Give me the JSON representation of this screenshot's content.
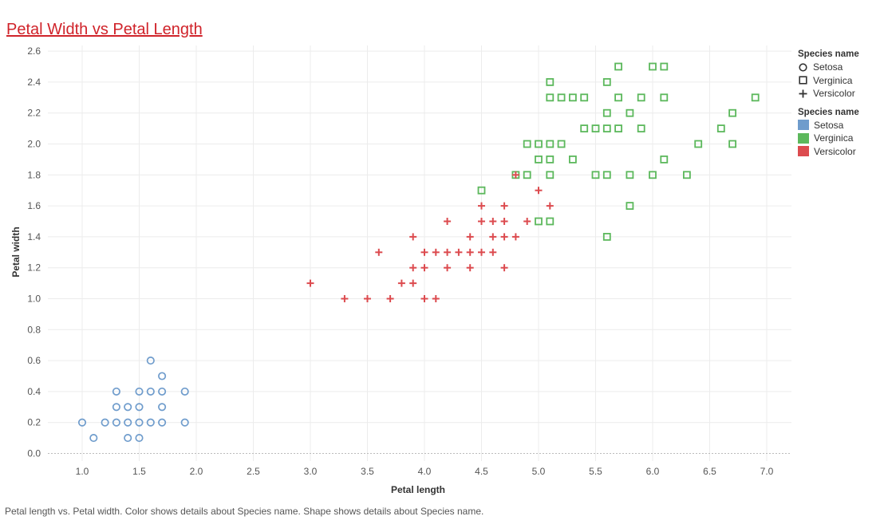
{
  "page": {
    "title": "Petal Width vs Petal Length",
    "caption": "Petal length vs. Petal width.  Color shows details about Species name.  Shape shows details about Species name."
  },
  "legend": {
    "shape_title": "Species name",
    "shape_items": [
      {
        "label": "Setosa",
        "shape": "circle"
      },
      {
        "label": "Verginica",
        "shape": "square"
      },
      {
        "label": "Versicolor",
        "shape": "plus"
      }
    ],
    "color_title": "Species name",
    "color_items": [
      {
        "label": "Setosa",
        "color": "#6f9ccc"
      },
      {
        "label": "Verginica",
        "color": "#5cb85c"
      },
      {
        "label": "Versicolor",
        "color": "#dc4b4f"
      }
    ]
  },
  "chart_data": {
    "type": "scatter",
    "xlabel": "Petal length",
    "ylabel": "Petal width",
    "xlim": [
      0.6,
      7.25
    ],
    "ylim": [
      -0.05,
      2.65
    ],
    "x_ticks": [
      "1.0",
      "1.5",
      "2.0",
      "2.5",
      "3.0",
      "3.5",
      "4.0",
      "4.5",
      "5.0",
      "5.5",
      "6.0",
      "6.5",
      "7.0"
    ],
    "y_ticks": [
      "0.0",
      "0.2",
      "0.4",
      "0.6",
      "0.8",
      "1.0",
      "1.2",
      "1.4",
      "1.6",
      "1.8",
      "2.0",
      "2.2",
      "2.4",
      "2.6"
    ],
    "grid": true,
    "legend_position": "right",
    "series": [
      {
        "name": "Setosa",
        "shape": "circle",
        "color": "#6f9ccc",
        "points": [
          [
            1.0,
            0.2
          ],
          [
            1.1,
            0.1
          ],
          [
            1.2,
            0.2
          ],
          [
            1.3,
            0.2
          ],
          [
            1.3,
            0.3
          ],
          [
            1.3,
            0.4
          ],
          [
            1.4,
            0.1
          ],
          [
            1.4,
            0.2
          ],
          [
            1.4,
            0.3
          ],
          [
            1.5,
            0.1
          ],
          [
            1.5,
            0.2
          ],
          [
            1.5,
            0.3
          ],
          [
            1.5,
            0.4
          ],
          [
            1.6,
            0.2
          ],
          [
            1.6,
            0.4
          ],
          [
            1.6,
            0.6
          ],
          [
            1.7,
            0.2
          ],
          [
            1.7,
            0.3
          ],
          [
            1.7,
            0.4
          ],
          [
            1.7,
            0.5
          ],
          [
            1.9,
            0.2
          ],
          [
            1.9,
            0.4
          ]
        ]
      },
      {
        "name": "Verginica",
        "shape": "square",
        "color": "#5cb85c",
        "points": [
          [
            4.5,
            1.7
          ],
          [
            4.8,
            1.8
          ],
          [
            4.9,
            1.8
          ],
          [
            4.9,
            2.0
          ],
          [
            5.0,
            1.5
          ],
          [
            5.0,
            1.9
          ],
          [
            5.0,
            2.0
          ],
          [
            5.1,
            1.5
          ],
          [
            5.1,
            1.8
          ],
          [
            5.1,
            1.9
          ],
          [
            5.1,
            2.0
          ],
          [
            5.1,
            2.3
          ],
          [
            5.1,
            2.4
          ],
          [
            5.2,
            2.0
          ],
          [
            5.2,
            2.3
          ],
          [
            5.3,
            1.9
          ],
          [
            5.3,
            2.3
          ],
          [
            5.4,
            2.1
          ],
          [
            5.4,
            2.3
          ],
          [
            5.5,
            1.8
          ],
          [
            5.5,
            2.1
          ],
          [
            5.6,
            1.4
          ],
          [
            5.6,
            1.8
          ],
          [
            5.6,
            2.1
          ],
          [
            5.6,
            2.2
          ],
          [
            5.6,
            2.4
          ],
          [
            5.7,
            2.1
          ],
          [
            5.7,
            2.3
          ],
          [
            5.7,
            2.5
          ],
          [
            5.8,
            1.6
          ],
          [
            5.8,
            1.8
          ],
          [
            5.8,
            2.2
          ],
          [
            5.9,
            2.1
          ],
          [
            5.9,
            2.3
          ],
          [
            6.0,
            1.8
          ],
          [
            6.0,
            2.5
          ],
          [
            6.1,
            1.9
          ],
          [
            6.1,
            2.3
          ],
          [
            6.1,
            2.5
          ],
          [
            6.3,
            1.8
          ],
          [
            6.4,
            2.0
          ],
          [
            6.6,
            2.1
          ],
          [
            6.7,
            2.0
          ],
          [
            6.7,
            2.2
          ],
          [
            6.9,
            2.3
          ]
        ]
      },
      {
        "name": "Versicolor",
        "shape": "plus",
        "color": "#dc4b4f",
        "points": [
          [
            3.0,
            1.1
          ],
          [
            3.3,
            1.0
          ],
          [
            3.5,
            1.0
          ],
          [
            3.6,
            1.3
          ],
          [
            3.7,
            1.0
          ],
          [
            3.8,
            1.1
          ],
          [
            3.9,
            1.1
          ],
          [
            3.9,
            1.2
          ],
          [
            3.9,
            1.4
          ],
          [
            4.0,
            1.0
          ],
          [
            4.0,
            1.2
          ],
          [
            4.0,
            1.3
          ],
          [
            4.1,
            1.0
          ],
          [
            4.1,
            1.3
          ],
          [
            4.2,
            1.2
          ],
          [
            4.2,
            1.3
          ],
          [
            4.2,
            1.5
          ],
          [
            4.3,
            1.3
          ],
          [
            4.4,
            1.2
          ],
          [
            4.4,
            1.3
          ],
          [
            4.4,
            1.4
          ],
          [
            4.5,
            1.3
          ],
          [
            4.5,
            1.5
          ],
          [
            4.5,
            1.6
          ],
          [
            4.6,
            1.3
          ],
          [
            4.6,
            1.4
          ],
          [
            4.6,
            1.5
          ],
          [
            4.7,
            1.2
          ],
          [
            4.7,
            1.4
          ],
          [
            4.7,
            1.5
          ],
          [
            4.7,
            1.6
          ],
          [
            4.8,
            1.4
          ],
          [
            4.8,
            1.8
          ],
          [
            4.9,
            1.5
          ],
          [
            5.0,
            1.7
          ],
          [
            5.1,
            1.6
          ]
        ]
      }
    ]
  }
}
